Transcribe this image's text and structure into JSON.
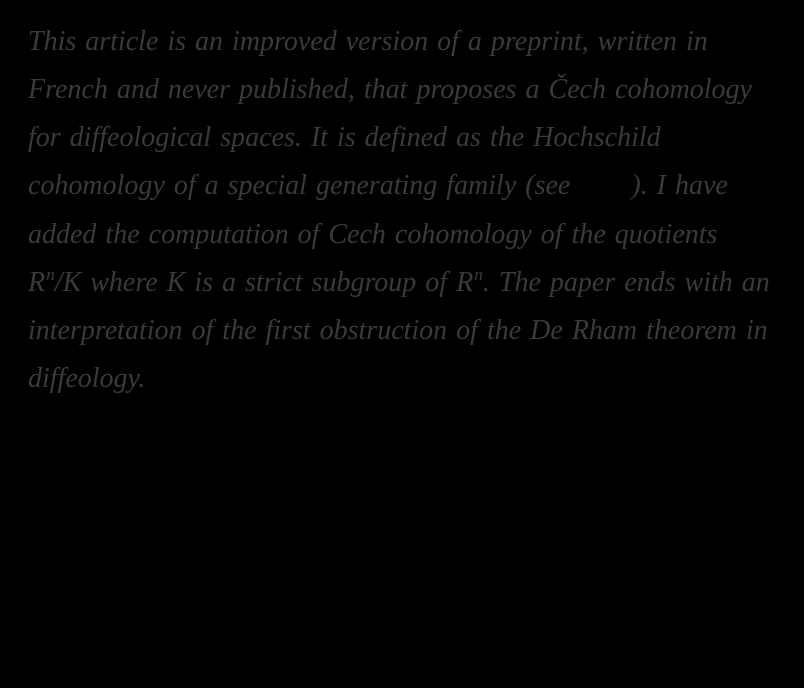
{
  "abstract": {
    "t1": "This article is an improved version of a preprint, written in French and never published, that proposes a Čech cohomology for diffeological spaces. It is defined as the Hochschild cohomology of a special generating family (see ",
    "t2": "). I have added the computation of Cech cohomology of the quotients ",
    "t3": "/K where K is a strict subgroup of ",
    "t4": ". The paper ends with an interpretation of the first obstruction of the De Rham theorem in diffeology."
  },
  "math": {
    "rn_base": "R",
    "rn_sup": "n"
  }
}
